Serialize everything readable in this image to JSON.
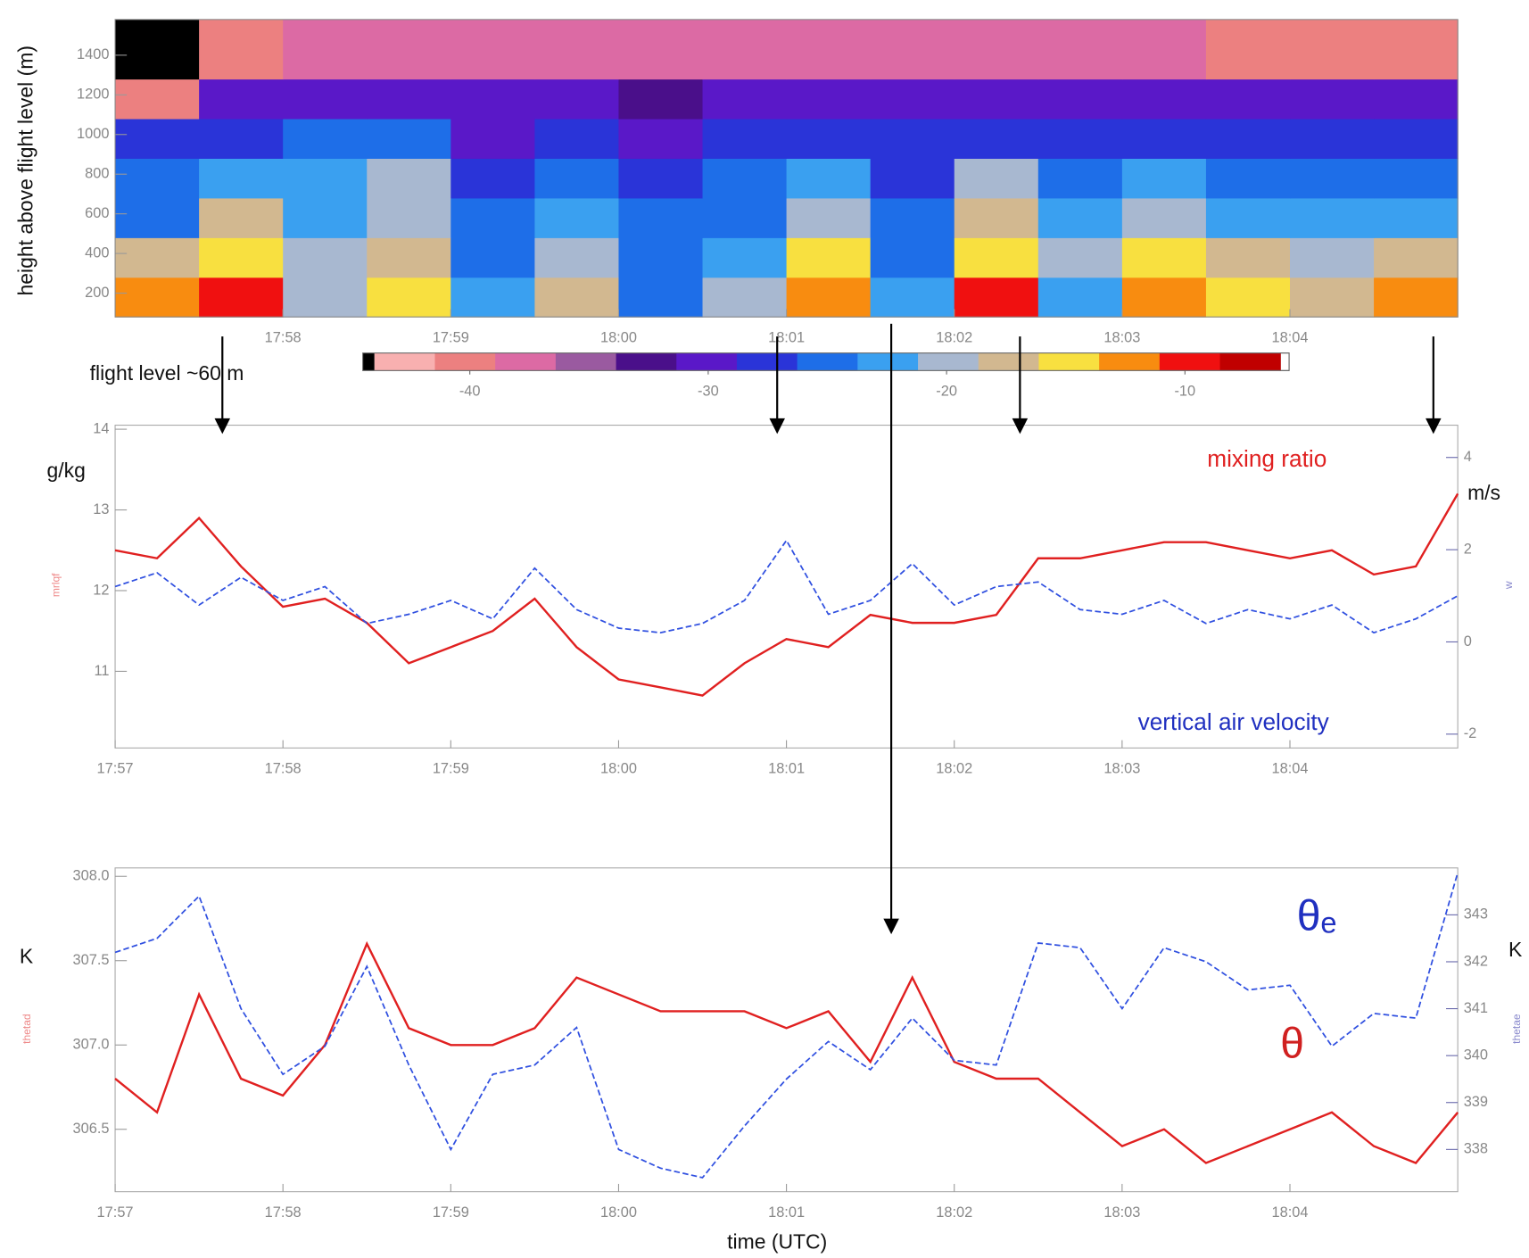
{
  "chart_data": [
    {
      "type": "heatmap",
      "y_label": "height above flight level (m)",
      "annotation": "flight level ~60 m",
      "xlim": [
        1077,
        1085
      ],
      "xticks": [
        {
          "value": 1078,
          "label": "17:58"
        },
        {
          "value": 1079,
          "label": "17:59"
        },
        {
          "value": 1080,
          "label": "18:00"
        },
        {
          "value": 1081,
          "label": "18:01"
        },
        {
          "value": 1082,
          "label": "18:02"
        },
        {
          "value": 1083,
          "label": "18:03"
        },
        {
          "value": 1084,
          "label": "18:04"
        }
      ],
      "ylim": [
        80,
        1580
      ],
      "yticks": [
        200,
        400,
        600,
        800,
        1000,
        1200,
        1400
      ],
      "x_bins": [
        1077,
        1077.5,
        1078,
        1078.5,
        1079,
        1079.5,
        1080,
        1080.5,
        1081,
        1081.5,
        1082,
        1082.5,
        1083,
        1083.5,
        1084,
        1084.5,
        1085
      ],
      "y_bins": [
        80,
        280,
        480,
        680,
        880,
        1080,
        1280,
        1580
      ],
      "z": [
        [
          -12,
          -10,
          -20,
          -14,
          -22,
          -18,
          -24,
          -20,
          -12,
          -22,
          -11,
          -22,
          -12,
          -14,
          -17,
          -13
        ],
        [
          -18,
          -14,
          -20,
          -17,
          -24,
          -20,
          -25,
          -22,
          -15,
          -24,
          -15,
          -20,
          -16,
          -18,
          -20,
          -18
        ],
        [
          -24,
          -18,
          -22,
          -19,
          -26,
          -22,
          -26,
          -24,
          -19,
          -26,
          -18,
          -22,
          -19,
          -22,
          -22,
          -23
        ],
        [
          -26,
          -22,
          -22,
          -21,
          -27,
          -24,
          -28,
          -26,
          -22,
          -27,
          -21,
          -24,
          -22,
          -25,
          -25,
          -26
        ],
        [
          -28,
          -27,
          -26,
          -26,
          -29,
          -27,
          -29,
          -28,
          -27,
          -28,
          -27,
          -27,
          -27,
          -28,
          -28,
          -28
        ],
        [
          -40,
          -31,
          -30,
          -31,
          -31,
          -31,
          -32,
          -30,
          -31,
          -31,
          -31,
          -30,
          -30,
          -31,
          -31,
          -30
        ],
        [
          -45,
          -40,
          -38,
          -38,
          -37,
          -38,
          -37,
          -38,
          -37,
          -38,
          -37,
          -38,
          -38,
          -39,
          -40,
          -39
        ]
      ],
      "colorbar": {
        "clim": [
          -44,
          -6
        ],
        "under_color": "#000000",
        "over_color": "#ffffff",
        "colors": [
          "#f8b0b0",
          "#ec8080",
          "#dc6aa4",
          "#9a5aa0",
          "#4a0f8a",
          "#5a18c8",
          "#2a34d8",
          "#1e6ee8",
          "#3aa0f0",
          "#a8b8d0",
          "#d2b890",
          "#f8e040",
          "#f88c10",
          "#f01010",
          "#c00000"
        ],
        "ticks": [
          -40,
          -30,
          -20,
          -10
        ]
      }
    },
    {
      "type": "line",
      "y_label": "g/kg",
      "y2_label": "m/s",
      "y_var_label": "mrlqf",
      "y2_var_label": "w",
      "annotations": [
        {
          "text": "mixing ratio",
          "color": "#e02020"
        },
        {
          "text": "vertical air velocity",
          "color": "#2030c0"
        }
      ],
      "xlim": [
        1077,
        1085
      ],
      "xticks": [
        {
          "value": 1077,
          "label": "17:57"
        },
        {
          "value": 1078,
          "label": "17:58"
        },
        {
          "value": 1079,
          "label": "17:59"
        },
        {
          "value": 1080,
          "label": "18:00"
        },
        {
          "value": 1081,
          "label": "18:01"
        },
        {
          "value": 1082,
          "label": "18:02"
        },
        {
          "value": 1083,
          "label": "18:03"
        },
        {
          "value": 1084,
          "label": "18:04"
        }
      ],
      "ylim": [
        10.05,
        14.05
      ],
      "yticks": [
        11,
        12,
        13,
        14
      ],
      "y2lim": [
        -2.3,
        4.7
      ],
      "y2ticks": [
        -2,
        0,
        2,
        4
      ],
      "x": [
        1077,
        1077.25,
        1077.5,
        1077.75,
        1078,
        1078.25,
        1078.5,
        1078.75,
        1079,
        1079.25,
        1079.5,
        1079.75,
        1080,
        1080.25,
        1080.5,
        1080.75,
        1081,
        1081.25,
        1081.5,
        1081.75,
        1082,
        1082.25,
        1082.5,
        1082.75,
        1083,
        1083.25,
        1083.5,
        1083.75,
        1084,
        1084.25,
        1084.5,
        1084.75,
        1085
      ],
      "series": [
        {
          "name": "mixing ratio",
          "color": "#e02020",
          "values": [
            12.5,
            12.4,
            12.9,
            12.3,
            11.8,
            11.9,
            11.6,
            11.1,
            11.3,
            11.5,
            11.9,
            11.3,
            10.9,
            10.8,
            10.7,
            11.1,
            11.4,
            11.3,
            11.7,
            11.6,
            11.6,
            11.7,
            12.4,
            12.4,
            12.5,
            12.6,
            12.6,
            12.5,
            12.4,
            12.5,
            12.2,
            12.3,
            13.2
          ]
        },
        {
          "name": "vertical air velocity",
          "color": "#3050e0",
          "axis": "y2",
          "dashed": true,
          "values": [
            1.2,
            1.5,
            0.8,
            1.4,
            0.9,
            1.2,
            0.4,
            0.6,
            0.9,
            0.5,
            1.6,
            0.7,
            0.3,
            0.2,
            0.4,
            0.9,
            2.2,
            0.6,
            0.9,
            1.7,
            0.8,
            1.2,
            1.3,
            0.7,
            0.6,
            0.9,
            0.4,
            0.7,
            0.5,
            0.8,
            0.2,
            0.5,
            1.0
          ]
        }
      ]
    },
    {
      "type": "line",
      "y_label": "K",
      "y2_label": "K",
      "y_var_label": "thetad",
      "y2_var_label": "thetae",
      "x_label": "time (UTC)",
      "annotations": [
        {
          "text": "θₑ",
          "color": "#2030c0"
        },
        {
          "text": "θ",
          "color": "#d02020"
        }
      ],
      "xlim": [
        1077,
        1085
      ],
      "xticks": [
        {
          "value": 1077,
          "label": "17:57"
        },
        {
          "value": 1078,
          "label": "17:58"
        },
        {
          "value": 1079,
          "label": "17:59"
        },
        {
          "value": 1080,
          "label": "18:00"
        },
        {
          "value": 1081,
          "label": "18:01"
        },
        {
          "value": 1082,
          "label": "18:02"
        },
        {
          "value": 1083,
          "label": "18:03"
        },
        {
          "value": 1084,
          "label": "18:04"
        }
      ],
      "ylim": [
        306.13,
        308.05
      ],
      "yticks": [
        306.5,
        {
          "value": 307,
          "label": "307.0"
        },
        307.5,
        {
          "value": 308,
          "label": "308.0"
        }
      ],
      "y2lim": [
        337.1,
        344
      ],
      "y2ticks": [
        338,
        339,
        340,
        341,
        342,
        343
      ],
      "x": [
        1077,
        1077.25,
        1077.5,
        1077.75,
        1078,
        1078.25,
        1078.5,
        1078.75,
        1079,
        1079.25,
        1079.5,
        1079.75,
        1080,
        1080.25,
        1080.5,
        1080.75,
        1081,
        1081.25,
        1081.5,
        1081.75,
        1082,
        1082.25,
        1082.5,
        1082.75,
        1083,
        1083.25,
        1083.5,
        1083.75,
        1084,
        1084.25,
        1084.5,
        1084.75,
        1085
      ],
      "series": [
        {
          "name": "θ",
          "color": "#e02020",
          "values": [
            306.8,
            306.6,
            307.3,
            306.8,
            306.7,
            307.0,
            307.6,
            307.1,
            307.0,
            307.0,
            307.1,
            307.4,
            307.3,
            307.2,
            307.2,
            307.2,
            307.1,
            307.2,
            306.9,
            307.4,
            306.9,
            306.8,
            306.8,
            306.6,
            306.4,
            306.5,
            306.3,
            306.4,
            306.5,
            306.6,
            306.4,
            306.3,
            306.6
          ]
        },
        {
          "name": "θₑ",
          "color": "#3050e0",
          "axis": "y2",
          "dashed": true,
          "values": [
            342.2,
            342.5,
            343.4,
            341.0,
            339.6,
            340.2,
            341.9,
            339.8,
            338.0,
            339.6,
            339.8,
            340.6,
            338.0,
            337.6,
            337.4,
            338.5,
            339.5,
            340.3,
            339.7,
            340.8,
            339.9,
            339.8,
            342.4,
            342.3,
            341.0,
            342.3,
            342.0,
            341.4,
            341.5,
            340.2,
            340.9,
            340.8,
            343.9
          ]
        }
      ]
    }
  ]
}
